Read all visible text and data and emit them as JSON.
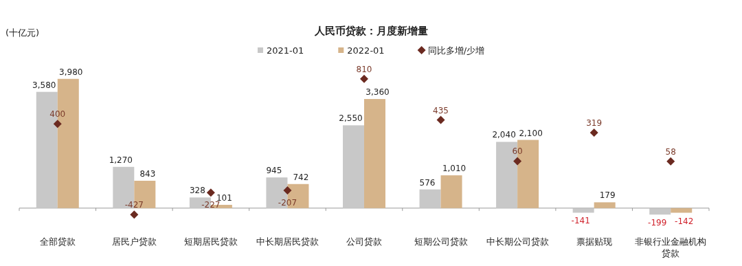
{
  "chart_data": {
    "type": "bar",
    "title": "人民币贷款：月度新增量",
    "ylabel": "(十亿元)",
    "categories": [
      "全部贷款",
      "居民户贷款",
      "短期居民贷款",
      "中长期居民贷款",
      "公司贷款",
      "短期公司贷款",
      "中长期公司贷款",
      "票据贴现",
      "非银行业金融机构贷款"
    ],
    "series": [
      {
        "name": "2021-01",
        "color": "#c8c8c8",
        "values": [
          3580,
          1270,
          328,
          945,
          2550,
          576,
          2040,
          -141,
          -199
        ],
        "value_labels": [
          "3,580",
          "1,270",
          "328",
          "945",
          "2,550",
          "576",
          "2,040",
          "-141",
          "-199"
        ]
      },
      {
        "name": "2022-01",
        "color": "#d6b48a",
        "values": [
          3980,
          843,
          101,
          742,
          3360,
          1010,
          2100,
          179,
          -142
        ],
        "value_labels": [
          "3,980",
          "843",
          "101",
          "742",
          "3,360",
          "1,010",
          "2,100",
          "179",
          "-142"
        ]
      },
      {
        "name": "同比多增/少增",
        "type": "scatter",
        "axis": "y2",
        "marker": "diamond",
        "color": "#6b2a20",
        "values": [
          400,
          -427,
          -227,
          -207,
          810,
          435,
          60,
          319,
          58
        ],
        "value_labels": [
          "400",
          "-427",
          "-227",
          "-207",
          "810",
          "435",
          "60",
          "319",
          "58"
        ]
      }
    ],
    "legend": "top"
  }
}
